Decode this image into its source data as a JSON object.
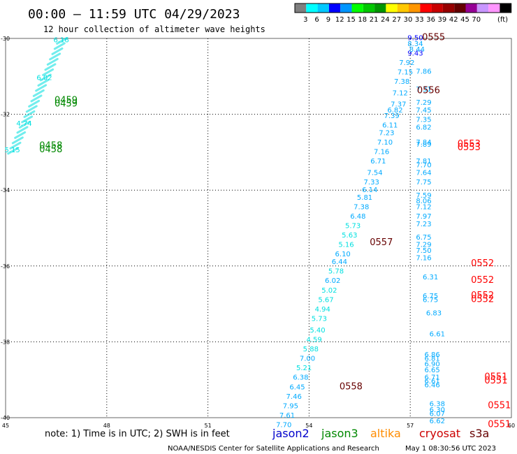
{
  "header": {
    "title": "00:00 – 11:59 UTC 04/29/2023",
    "subtitle": "12 hour collection of altimeter wave heights"
  },
  "colorbar": {
    "colors": [
      "#7f7f7f",
      "#00ffff",
      "#00c8ff",
      "#0000ff",
      "#0096ff",
      "#00ff00",
      "#00c800",
      "#009600",
      "#ffff00",
      "#ffc800",
      "#ff9600",
      "#ff0000",
      "#c80000",
      "#960000",
      "#640000",
      "#960096",
      "#c896ff",
      "#ff96ff",
      "#000000"
    ],
    "labels": [
      "3",
      "6",
      "9",
      "12",
      "15",
      "18",
      "21",
      "24",
      "27",
      "30",
      "33",
      "36",
      "39",
      "42",
      "45",
      "70"
    ],
    "unit": "(ft)"
  },
  "footer": {
    "note": "note: 1) Time is in UTC; 2) SWH is in feet",
    "missions": [
      {
        "name": "jason2",
        "color": "#0000cc"
      },
      {
        "name": "jason3",
        "color": "#008800"
      },
      {
        "name": "altika",
        "color": "#ff8c00"
      },
      {
        "name": "cryosat",
        "color": "#cc0000"
      },
      {
        "name": "s3a",
        "color": "#660000"
      }
    ],
    "credit": "NOAA/NESDIS Center for Satellite Applications and Research",
    "timestamp": "May  1 08:30:56 UTC 2023"
  },
  "chart_data": {
    "type": "scatter",
    "xlim": [
      45,
      60
    ],
    "ylim": [
      -40,
      -30
    ],
    "x_ticks": [
      "45",
      "48",
      "51",
      "54",
      "57",
      "60"
    ],
    "y_ticks": [
      "-30",
      "-32",
      "-34",
      "-36",
      "-38",
      "-40"
    ],
    "grid": true,
    "series": [
      {
        "name": "jason3",
        "points": [
          [
            46.65,
            -30.1,
            "6.16",
            "#00e0e0"
          ],
          [
            46.15,
            -31.1,
            "6.02",
            "#00e0e0"
          ],
          [
            45.55,
            -32.3,
            "4.74",
            "#00e0e0"
          ],
          [
            45.2,
            -33.0,
            "5.15",
            "#00e0e0"
          ]
        ]
      },
      {
        "name": "cryosat",
        "points": [
          [
            57.15,
            -30.05,
            "9.50",
            "#0000ff"
          ],
          [
            57.15,
            -30.2,
            "8.34",
            "#00aaff"
          ],
          [
            57.15,
            -30.45,
            "9.43",
            "#0000ff"
          ],
          [
            57.2,
            -30.35,
            "8.44",
            "#00aaff"
          ],
          [
            56.9,
            -30.7,
            "7.92",
            "#00aaff"
          ],
          [
            56.85,
            -30.95,
            "7.15",
            "#00aaff"
          ],
          [
            57.4,
            -30.93,
            "7.86",
            "#00aaff"
          ],
          [
            56.75,
            -31.2,
            "7.38",
            "#00aaff"
          ],
          [
            57.4,
            -31.4,
            "7.31",
            "#00aaff"
          ],
          [
            56.7,
            -31.5,
            "7.12",
            "#00aaff"
          ],
          [
            56.65,
            -31.8,
            "7.37",
            "#00aaff"
          ],
          [
            57.4,
            -31.75,
            "7.29",
            "#00aaff"
          ],
          [
            56.55,
            -31.95,
            "6.82",
            "#00aaff"
          ],
          [
            57.4,
            -31.95,
            "7.45",
            "#00aaff"
          ],
          [
            56.45,
            -32.1,
            "7.39",
            "#00aaff"
          ],
          [
            56.4,
            -32.35,
            "6.11",
            "#00aaff"
          ],
          [
            57.4,
            -32.2,
            "7.35",
            "#00aaff"
          ],
          [
            57.4,
            -32.4,
            "6.82",
            "#00aaff"
          ],
          [
            56.3,
            -32.55,
            "7.23",
            "#00aaff"
          ],
          [
            56.25,
            -32.8,
            "7.10",
            "#00aaff"
          ],
          [
            57.4,
            -32.8,
            "7.84",
            "#00aaff"
          ],
          [
            57.4,
            -32.85,
            "7.89",
            "#00aaff"
          ],
          [
            56.15,
            -33.05,
            "7.16",
            "#00aaff"
          ],
          [
            56.05,
            -33.3,
            "6.71",
            "#00aaff"
          ],
          [
            57.4,
            -33.3,
            "7.81",
            "#00aaff"
          ],
          [
            57.4,
            -33.4,
            "7.70",
            "#00aaff"
          ],
          [
            55.95,
            -33.6,
            "7.54",
            "#00aaff"
          ],
          [
            57.4,
            -33.6,
            "7.64",
            "#00aaff"
          ],
          [
            55.85,
            -33.85,
            "7.33",
            "#00aaff"
          ],
          [
            57.4,
            -33.85,
            "7.75",
            "#00aaff"
          ],
          [
            55.8,
            -34.05,
            "6.14",
            "#00aaff"
          ],
          [
            55.65,
            -34.25,
            "5.81",
            "#00aaff"
          ],
          [
            57.4,
            -34.2,
            "7.59",
            "#00aaff"
          ],
          [
            57.4,
            -34.35,
            "8.06",
            "#00aaff"
          ],
          [
            55.55,
            -34.5,
            "7.38",
            "#00aaff"
          ],
          [
            57.4,
            -34.5,
            "7.12",
            "#00aaff"
          ],
          [
            55.45,
            -34.75,
            "6.48",
            "#00aaff"
          ],
          [
            57.4,
            -34.75,
            "7.97",
            "#00aaff"
          ],
          [
            55.3,
            -35.0,
            "5.73",
            "#00e0e0"
          ],
          [
            57.4,
            -34.95,
            "7.23",
            "#00aaff"
          ],
          [
            55.2,
            -35.25,
            "5.63",
            "#00e0e0"
          ],
          [
            57.4,
            -35.3,
            "6.75",
            "#00aaff"
          ],
          [
            55.1,
            -35.5,
            "5.16",
            "#00e0e0"
          ],
          [
            57.4,
            -35.5,
            "7.29",
            "#00aaff"
          ],
          [
            55.0,
            -35.75,
            "6.10",
            "#00aaff"
          ],
          [
            57.4,
            -35.65,
            "7.50",
            "#00aaff"
          ],
          [
            54.9,
            -35.95,
            "6.44",
            "#00aaff"
          ],
          [
            57.4,
            -35.85,
            "7.16",
            "#00aaff"
          ],
          [
            54.8,
            -36.2,
            "5.78",
            "#00e0e0"
          ],
          [
            54.7,
            -36.45,
            "6.02",
            "#00aaff"
          ],
          [
            57.6,
            -36.35,
            "6.31",
            "#00aaff"
          ],
          [
            54.6,
            -36.7,
            "5.02",
            "#00e0e0"
          ],
          [
            54.5,
            -36.95,
            "5.67",
            "#00e0e0"
          ],
          [
            57.6,
            -36.85,
            "6.75",
            "#00aaff"
          ],
          [
            57.6,
            -36.95,
            "6.75",
            "#00aaff"
          ],
          [
            54.4,
            -37.2,
            "4.94",
            "#00e0e0"
          ],
          [
            57.7,
            -37.3,
            "6.83",
            "#00aaff"
          ],
          [
            54.3,
            -37.45,
            "5.73",
            "#00e0e0"
          ],
          [
            54.25,
            -37.75,
            "5.40",
            "#00e0e0"
          ],
          [
            54.15,
            -38.0,
            "4.59",
            "#00e0e0"
          ],
          [
            57.8,
            -37.85,
            "6.61",
            "#00aaff"
          ],
          [
            54.05,
            -38.25,
            "5.88",
            "#00e0e0"
          ],
          [
            53.95,
            -38.5,
            "7.00",
            "#00aaff"
          ],
          [
            57.65,
            -38.4,
            "6.86",
            "#00aaff"
          ],
          [
            57.65,
            -38.5,
            "6.81",
            "#00aaff"
          ],
          [
            57.65,
            -38.65,
            "6.90",
            "#00aaff"
          ],
          [
            53.85,
            -38.75,
            "5.21",
            "#00e0e0"
          ],
          [
            57.65,
            -38.8,
            "6.65",
            "#00aaff"
          ],
          [
            53.75,
            -39.0,
            "6.38",
            "#00aaff"
          ],
          [
            57.65,
            -39.0,
            "6.71",
            "#00aaff"
          ],
          [
            57.65,
            -39.1,
            "6.61",
            "#00aaff"
          ],
          [
            53.65,
            -39.25,
            "6.45",
            "#00aaff"
          ],
          [
            57.65,
            -39.2,
            "6.46",
            "#00aaff"
          ],
          [
            53.55,
            -39.5,
            "7.46",
            "#00aaff"
          ],
          [
            53.45,
            -39.75,
            "7.95",
            "#00aaff"
          ],
          [
            57.8,
            -39.7,
            "6.38",
            "#00aaff"
          ],
          [
            57.8,
            -39.85,
            "6.30",
            "#00aaff"
          ],
          [
            53.35,
            -40.0,
            "7.61",
            "#00aaff"
          ],
          [
            57.8,
            -39.95,
            "6.07",
            "#00aaff"
          ],
          [
            53.25,
            -40.25,
            "7.70",
            "#00aaff"
          ],
          [
            57.8,
            -40.15,
            "6.62",
            "#00aaff"
          ]
        ]
      }
    ],
    "time_labels": [
      {
        "x": 46.45,
        "y": -31.7,
        "t": "0459",
        "color": "#008800"
      },
      {
        "x": 46.45,
        "y": -31.8,
        "t": "0459",
        "color": "#008800"
      },
      {
        "x": 46.0,
        "y": -32.9,
        "t": "0458",
        "color": "#008800"
      },
      {
        "x": 46.0,
        "y": -33.0,
        "t": "0458",
        "color": "#008800"
      },
      {
        "x": 57.35,
        "y": -30.05,
        "t": "0555",
        "color": "#660000"
      },
      {
        "x": 57.2,
        "y": -31.45,
        "t": "0556",
        "color": "#660000"
      },
      {
        "x": 55.8,
        "y": -35.45,
        "t": "0557",
        "color": "#660000"
      },
      {
        "x": 54.9,
        "y": -39.25,
        "t": "0558",
        "color": "#660000"
      },
      {
        "x": 58.4,
        "y": -32.85,
        "t": "0553",
        "color": "#ff0000"
      },
      {
        "x": 58.4,
        "y": -32.95,
        "t": "0553",
        "color": "#ff0000"
      },
      {
        "x": 58.8,
        "y": -36.0,
        "t": "0552",
        "color": "#ff0000"
      },
      {
        "x": 58.8,
        "y": -36.45,
        "t": "0552",
        "color": "#ff0000"
      },
      {
        "x": 58.8,
        "y": -36.85,
        "t": "0552",
        "color": "#ff0000"
      },
      {
        "x": 58.8,
        "y": -36.95,
        "t": "0552",
        "color": "#ff0000"
      },
      {
        "x": 59.2,
        "y": -39.0,
        "t": "0551",
        "color": "#ff0000"
      },
      {
        "x": 59.2,
        "y": -39.1,
        "t": "0551",
        "color": "#ff0000"
      },
      {
        "x": 59.3,
        "y": -39.75,
        "t": "0551",
        "color": "#ff0000"
      },
      {
        "x": 59.3,
        "y": -40.25,
        "t": "0551",
        "color": "#ff0000"
      }
    ]
  }
}
